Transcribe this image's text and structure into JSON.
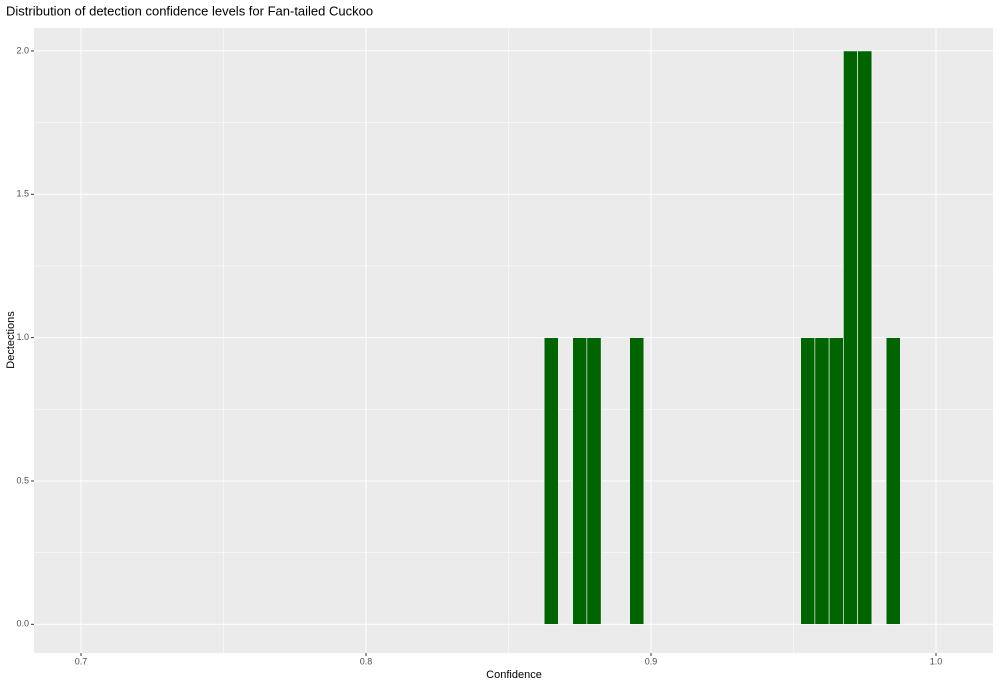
{
  "chart_data": {
    "type": "histogram",
    "title": "Distribution of detection confidence levels for Fan-tailed Cuckoo",
    "x_label": "Confidence",
    "y_label": "Dectections",
    "bins": [
      0.8625,
      0.8675,
      0.8725,
      0.8775,
      0.8825,
      0.8875,
      0.8925,
      0.8975,
      0.9025,
      0.9075,
      0.9125,
      0.9175,
      0.9225,
      0.9275,
      0.9325,
      0.9375,
      0.9425,
      0.9475,
      0.9525,
      0.9575,
      0.9625,
      0.9675,
      0.9725,
      0.9775,
      0.9825,
      0.9875
    ],
    "values": [
      1,
      0,
      1,
      1,
      0,
      0,
      1,
      0,
      0,
      0,
      0,
      0,
      0,
      0,
      0,
      0,
      0,
      0,
      1,
      1,
      1,
      2,
      2,
      0,
      1
    ],
    "color": "#006400",
    "xlim": [
      0.6835,
      1.02
    ],
    "ylim": [
      -0.1,
      2.08
    ],
    "xticks": [
      0.7,
      0.8,
      0.9,
      {
        "value": 1.0,
        "label": "1.0"
      }
    ],
    "yticks": [
      {
        "value": 0,
        "label": "0.0"
      },
      0.5,
      {
        "value": 1,
        "label": "1.0"
      },
      1.5,
      {
        "value": 2,
        "label": "2.0"
      }
    ],
    "grid": true
  }
}
